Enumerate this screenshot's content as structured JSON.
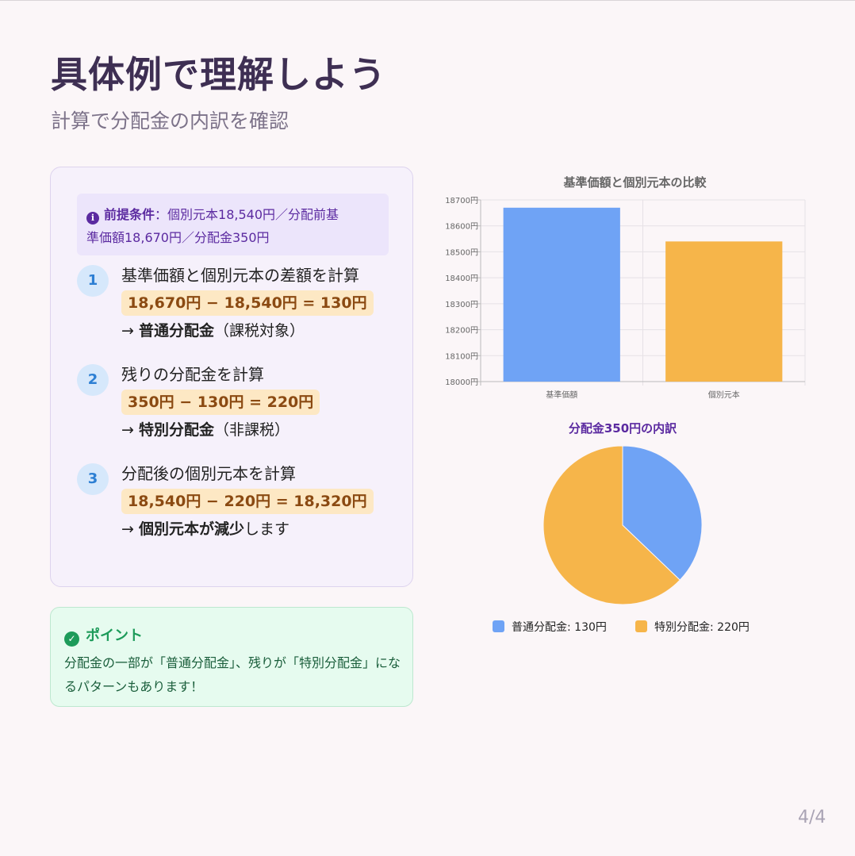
{
  "header": {
    "title": "具体例で理解しよう",
    "subtitle": "計算で分配金の内訳を確認"
  },
  "premise": {
    "label": "前提条件",
    "text_line1": "：個別元本18,540円／分配前基",
    "text_line2": "準価額18,670円／分配金350円"
  },
  "steps": [
    {
      "num": "1",
      "title": "基準価額と個別元本の差額を計算",
      "formula": "18,670円 − 18,540円 = 130円",
      "arrow": "→ ",
      "bold": "普通分配金",
      "rest": "（課税対象）"
    },
    {
      "num": "2",
      "title": "残りの分配金を計算",
      "formula": "350円 − 130円 = 220円",
      "arrow": "→ ",
      "bold": "特別分配金",
      "rest": "（非課税）"
    },
    {
      "num": "3",
      "title": "分配後の個別元本を計算",
      "formula": "18,540円 − 220円 = 18,320円",
      "arrow": "→ ",
      "bold": "個別元本が減少",
      "rest": "します"
    }
  ],
  "point": {
    "title": "ポイント",
    "text": "分配金の一部が「普通分配金」、残りが「特別分配金」になるパターンもあります！"
  },
  "page": "4/4",
  "chart_data": [
    {
      "type": "bar",
      "title": "基準価額と個別元本の比較",
      "categories": [
        "基準価額",
        "個別元本"
      ],
      "values": [
        18670,
        18540
      ],
      "colors": [
        "#6fa3f5",
        "#f6b54a"
      ],
      "ylim": [
        18000,
        18700
      ],
      "yticks": [
        18000,
        18100,
        18200,
        18300,
        18400,
        18500,
        18600,
        18700
      ],
      "y_suffix": "円",
      "grid": true
    },
    {
      "type": "pie",
      "title": "分配金350円の内訳",
      "labels": [
        "普通分配金",
        "特別分配金"
      ],
      "values": [
        130,
        220
      ],
      "colors": [
        "#6fa3f5",
        "#f6b54a"
      ],
      "legend": [
        "普通分配金: 130円",
        "特別分配金: 220円"
      ],
      "legend_position": "bottom"
    }
  ]
}
